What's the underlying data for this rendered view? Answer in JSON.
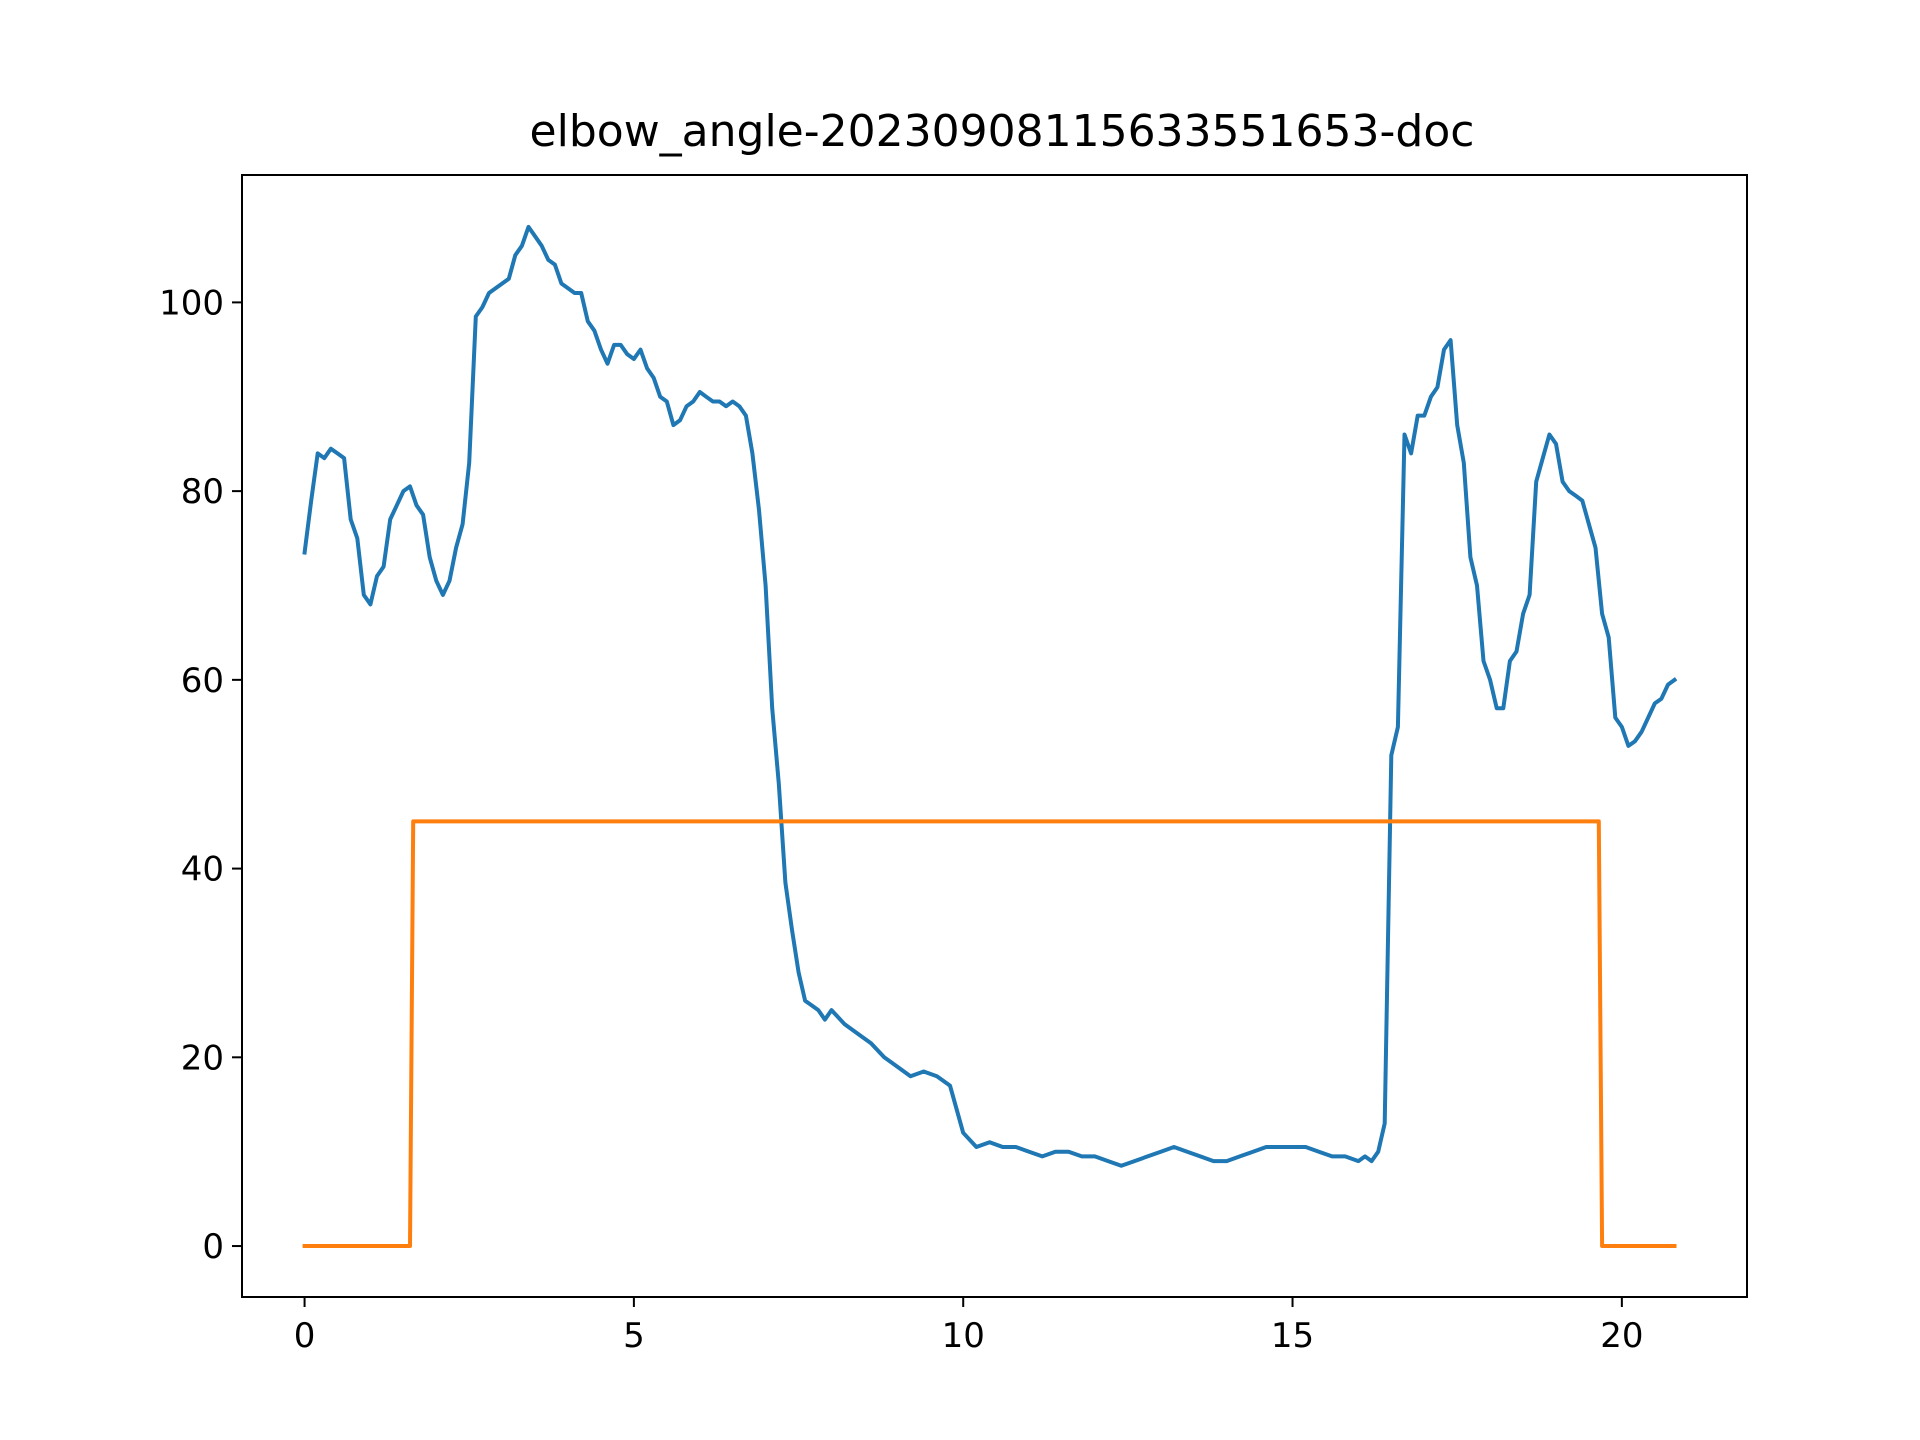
{
  "chart_data": {
    "type": "line",
    "title": "elbow_angle-20230908115633551653-doc",
    "xlabel": "",
    "ylabel": "",
    "xlim": [
      -0.95,
      21.9
    ],
    "ylim": [
      -5.4,
      113.5
    ],
    "xticks": [
      0,
      5,
      10,
      15,
      20
    ],
    "yticks": [
      0,
      20,
      40,
      60,
      80,
      100
    ],
    "grid": false,
    "colors": [
      "#1f77b4",
      "#ff7f0e"
    ],
    "series": [
      {
        "x": [
          0.0,
          0.1,
          0.2,
          0.3,
          0.4,
          0.5,
          0.6,
          0.7,
          0.8,
          0.9,
          1.0,
          1.1,
          1.2,
          1.3,
          1.4,
          1.5,
          1.6,
          1.7,
          1.8,
          1.9,
          2.0,
          2.1,
          2.2,
          2.3,
          2.4,
          2.5,
          2.6,
          2.7,
          2.8,
          2.9,
          3.0,
          3.1,
          3.2,
          3.3,
          3.4,
          3.5,
          3.6,
          3.7,
          3.8,
          3.9,
          4.0,
          4.1,
          4.2,
          4.3,
          4.4,
          4.5,
          4.6,
          4.7,
          4.8,
          4.9,
          5.0,
          5.1,
          5.2,
          5.3,
          5.4,
          5.5,
          5.6,
          5.7,
          5.8,
          5.9,
          6.0,
          6.1,
          6.2,
          6.3,
          6.4,
          6.5,
          6.6,
          6.7,
          6.8,
          6.9,
          7.0,
          7.1,
          7.2,
          7.3,
          7.4,
          7.5,
          7.6,
          7.7,
          7.8,
          7.9,
          8.0,
          8.2,
          8.4,
          8.6,
          8.8,
          9.0,
          9.2,
          9.4,
          9.6,
          9.8,
          10.0,
          10.2,
          10.4,
          10.6,
          10.8,
          11.0,
          11.2,
          11.4,
          11.6,
          11.8,
          12.0,
          12.2,
          12.4,
          12.6,
          12.8,
          13.0,
          13.2,
          13.4,
          13.6,
          13.8,
          14.0,
          14.2,
          14.4,
          14.6,
          14.8,
          15.0,
          15.2,
          15.4,
          15.6,
          15.8,
          16.0,
          16.1,
          16.2,
          16.3,
          16.4,
          16.5,
          16.6,
          16.7,
          16.8,
          16.9,
          17.0,
          17.1,
          17.2,
          17.3,
          17.4,
          17.5,
          17.6,
          17.7,
          17.8,
          17.9,
          18.0,
          18.1,
          18.2,
          18.3,
          18.4,
          18.5,
          18.6,
          18.7,
          18.8,
          18.9,
          19.0,
          19.1,
          19.2,
          19.3,
          19.4,
          19.5,
          19.6,
          19.7,
          19.8,
          19.9,
          20.0,
          20.1,
          20.2,
          20.3,
          20.4,
          20.5,
          20.6,
          20.7,
          20.8
        ],
        "values": [
          73.5,
          79.0,
          84.0,
          83.5,
          84.5,
          84.0,
          83.5,
          77.0,
          75.0,
          69.0,
          68.0,
          71.0,
          72.0,
          77.0,
          78.5,
          80.0,
          80.5,
          78.5,
          77.5,
          73.0,
          70.5,
          69.0,
          70.5,
          74.0,
          76.5,
          83.0,
          98.5,
          99.5,
          101.0,
          101.5,
          102.0,
          102.5,
          105.0,
          106.0,
          108.0,
          107.0,
          106.0,
          104.5,
          104.0,
          102.0,
          101.5,
          101.0,
          101.0,
          98.0,
          97.0,
          95.0,
          93.5,
          95.5,
          95.5,
          94.5,
          94.0,
          95.0,
          93.0,
          92.0,
          90.0,
          89.5,
          87.0,
          87.5,
          89.0,
          89.5,
          90.5,
          90.0,
          89.5,
          89.5,
          89.0,
          89.5,
          89.0,
          88.0,
          84.0,
          78.0,
          70.0,
          57.0,
          49.0,
          38.5,
          33.5,
          29.0,
          26.0,
          25.5,
          25.0,
          24.0,
          25.0,
          23.5,
          22.5,
          21.5,
          20.0,
          19.0,
          18.0,
          18.5,
          18.0,
          17.0,
          12.0,
          10.5,
          11.0,
          10.5,
          10.5,
          10.0,
          9.5,
          10.0,
          10.0,
          9.5,
          9.5,
          9.0,
          8.5,
          9.0,
          9.5,
          10.0,
          10.5,
          10.0,
          9.5,
          9.0,
          9.0,
          9.5,
          10.0,
          10.5,
          10.5,
          10.5,
          10.5,
          10.0,
          9.5,
          9.5,
          9.0,
          9.5,
          9.0,
          10.0,
          13.0,
          52.0,
          55.0,
          86.0,
          84.0,
          88.0,
          88.0,
          90.0,
          91.0,
          95.0,
          96.0,
          87.0,
          83.0,
          73.0,
          70.0,
          62.0,
          60.0,
          57.0,
          57.0,
          62.0,
          63.0,
          67.0,
          69.0,
          81.0,
          83.5,
          86.0,
          85.0,
          81.0,
          80.0,
          79.5,
          79.0,
          76.5,
          74.0,
          67.0,
          64.5,
          56.0,
          55.0,
          53.0,
          53.5,
          54.5,
          56.0,
          57.5,
          58.0,
          59.5,
          60.0
        ]
      },
      {
        "x": [
          0.0,
          1.6,
          1.65,
          19.65,
          19.7,
          20.8
        ],
        "values": [
          0,
          0,
          45,
          45,
          0,
          0
        ]
      }
    ]
  }
}
